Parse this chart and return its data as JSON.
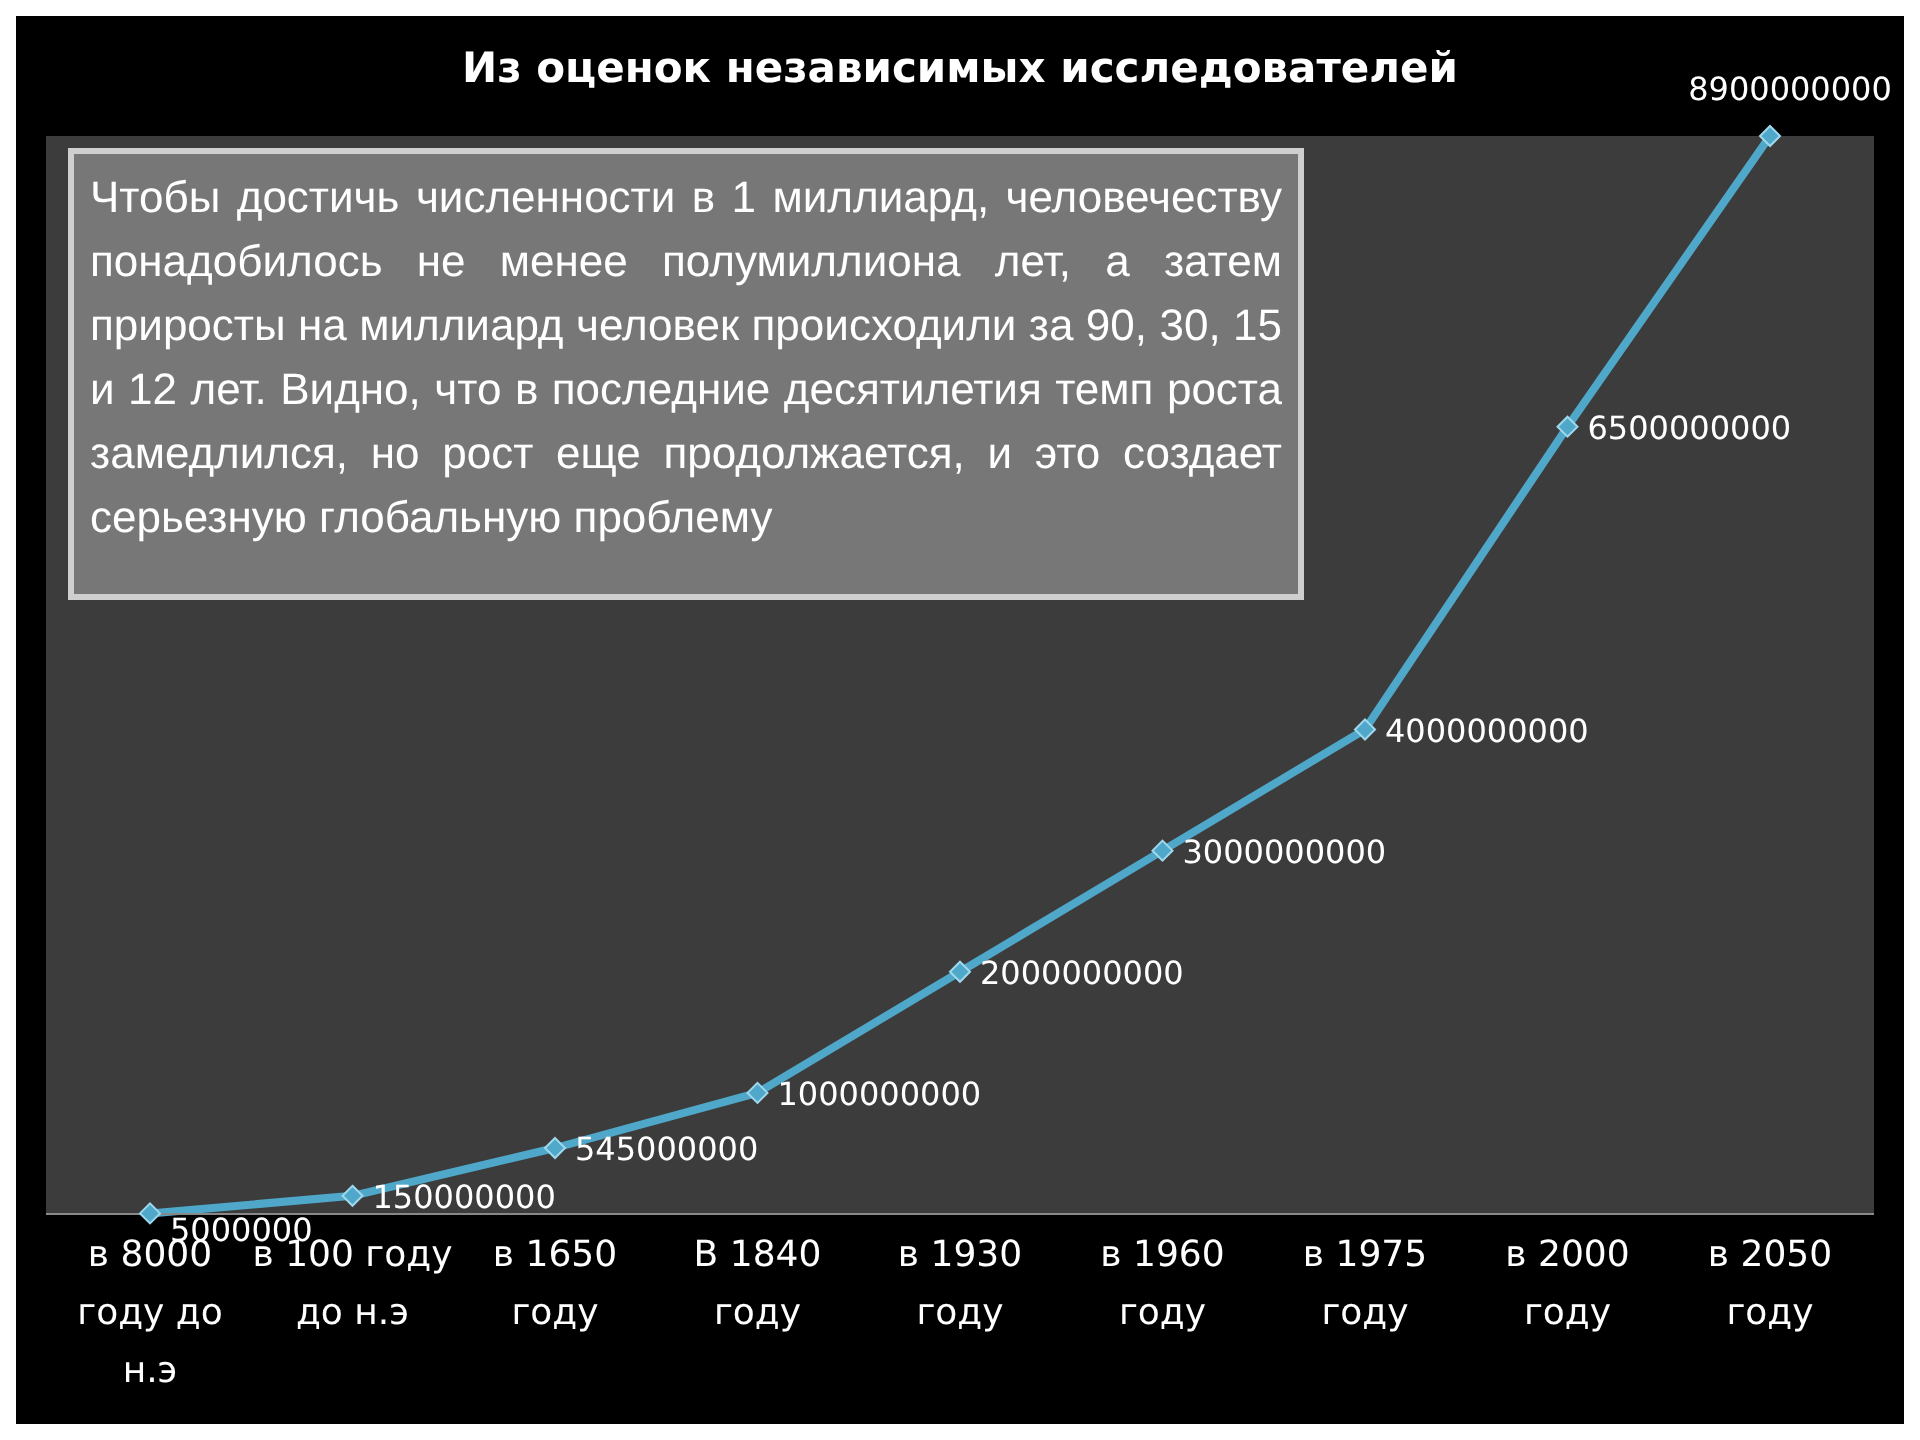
{
  "chart_data": {
    "type": "line",
    "title": "Из оценок независимых исследователей",
    "categories": [
      "в 8000 году до н.э",
      "в 100 году до н.э",
      "в 1650 году",
      "В 1840 году",
      "в 1930 году",
      "в 1960 году",
      "в 1975 году",
      "в 2000 году",
      "в 2050 году"
    ],
    "series": [
      {
        "color": "#4fa8c9",
        "values": [
          5000000,
          150000000,
          545000000,
          1000000000,
          2000000000,
          3000000000,
          4000000000,
          6500000000,
          8900000000
        ]
      }
    ],
    "data_labels": true,
    "marker": "diamond",
    "grid": false,
    "legend": false,
    "annotations": [
      "Чтобы достичь численности в 1 миллиард, человечеству понадобилось не менее полумиллиона лет, а затем приросты на миллиард человек происходили за 90, 30, 15 и 12 лет. Видно, что в последние десятилетия темп роста замедлился, но рост еще продолжается, и это создает серьезную глобальную проблему"
    ]
  }
}
